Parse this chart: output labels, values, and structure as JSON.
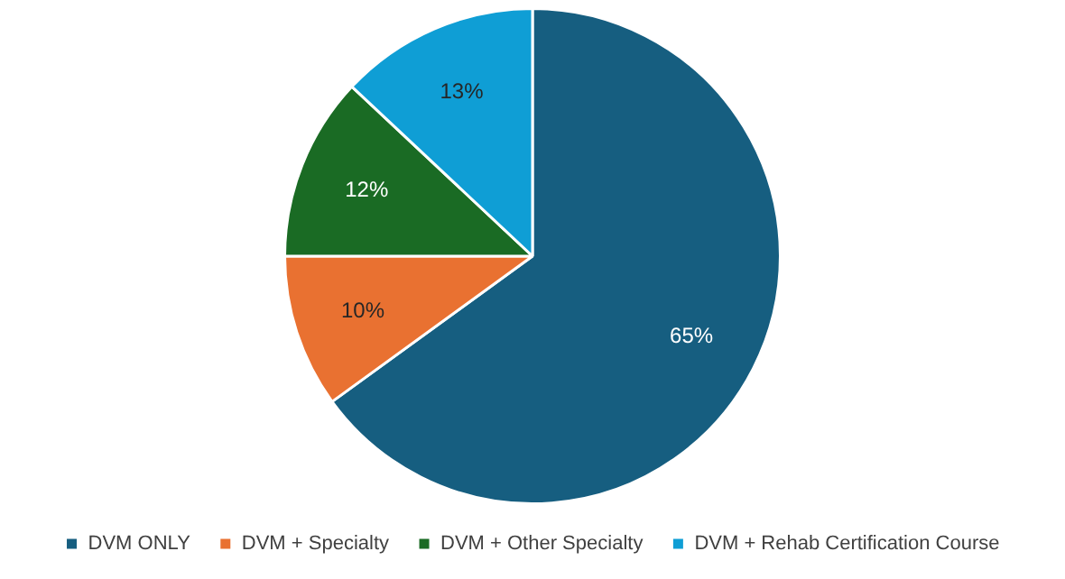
{
  "chart_data": {
    "type": "pie",
    "categories": [
      "DVM ONLY",
      "DVM + Specialty",
      "DVM + Other Specialty",
      "DVM + Rehab Certification Course"
    ],
    "values": [
      65,
      10,
      12,
      13
    ],
    "colors": [
      "#165e80",
      "#e97131",
      "#1a6b24",
      "#0f9ed5"
    ],
    "value_labels": [
      "65%",
      "10%",
      "12%",
      "13%"
    ],
    "legend": "bottom"
  }
}
